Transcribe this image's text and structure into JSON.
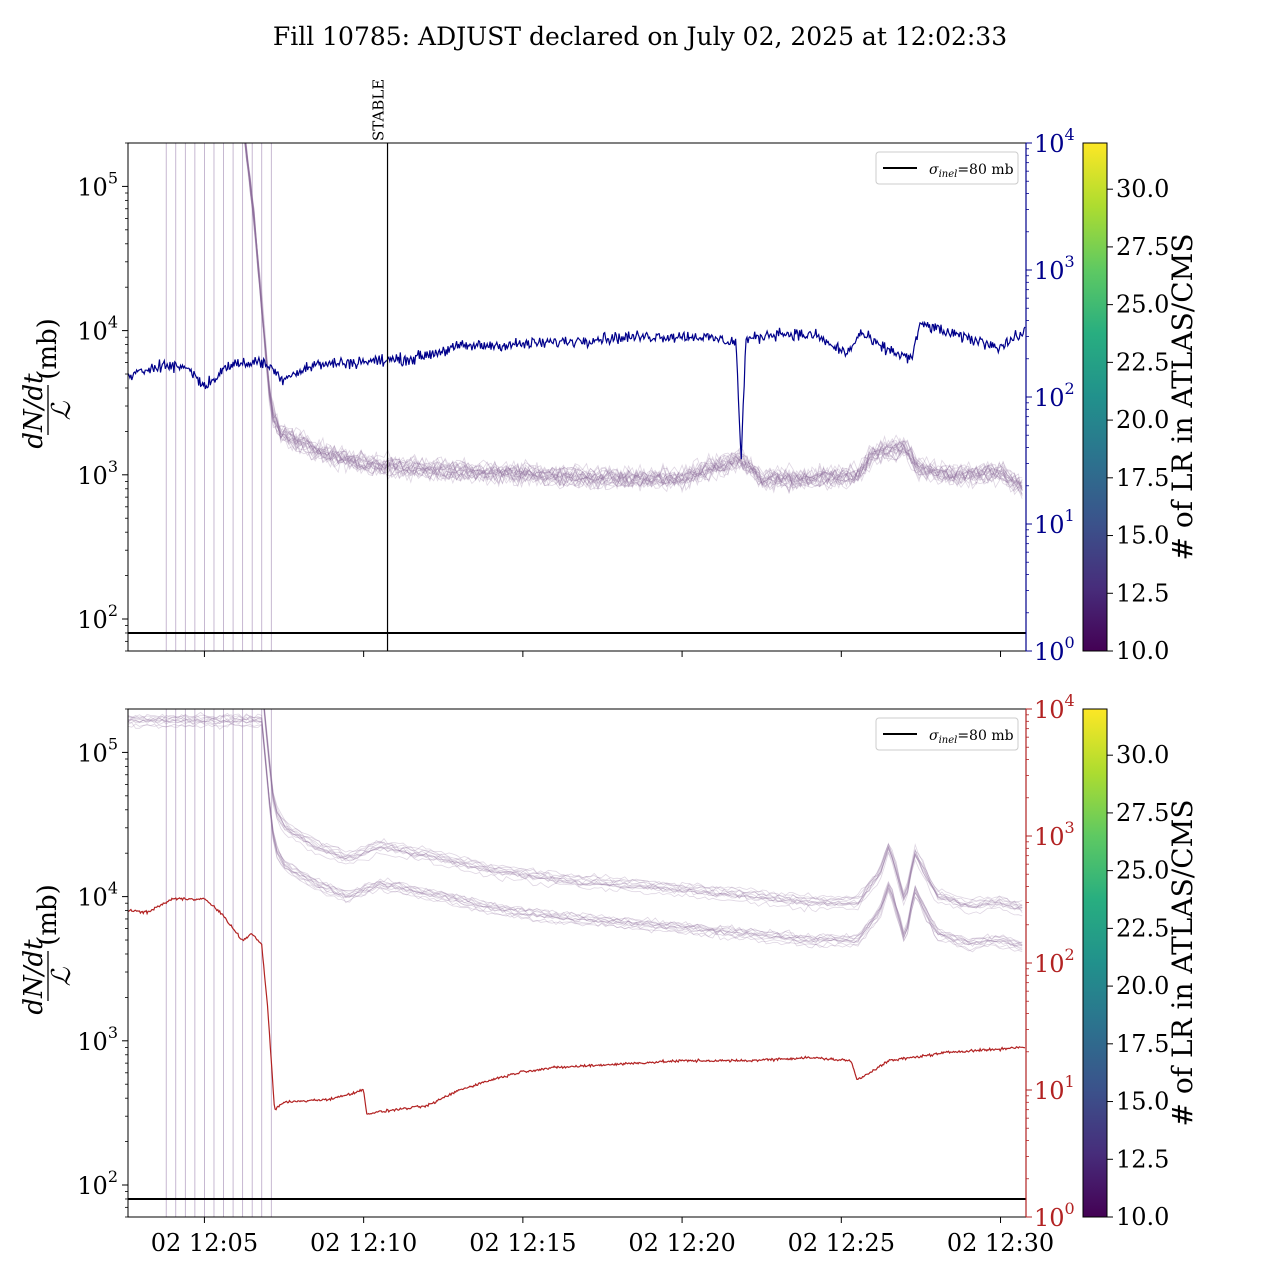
{
  "figure": {
    "title": "Fill 10785: ADJUST declared on July 02, 2025 at 12:02:33"
  },
  "colors": {
    "blue_line": "#00008b",
    "red_line": "#b22222",
    "purple_bundle": "#8b6a9a",
    "reference_line": "#000000"
  },
  "chart_data": [
    {
      "type": "line",
      "panel": "top",
      "title": "",
      "x_ticks": [
        "02 12:05",
        "02 12:10",
        "02 12:15",
        "02 12:20",
        "02 12:25",
        "02 12:30"
      ],
      "x_tick_values_min": [
        5,
        10,
        15,
        20,
        25,
        30
      ],
      "x_range_min": [
        2.6,
        30.8
      ],
      "ylabel_num": "dN/dt",
      "ylabel_den": "ℒ",
      "ylabel_unit": "(mb)",
      "y_scale": "log",
      "y_range": [
        60,
        200000
      ],
      "y_ticks": [
        {
          "base": "10",
          "exp": "2",
          "value": 100
        },
        {
          "base": "10",
          "exp": "3",
          "value": 1000
        },
        {
          "base": "10",
          "exp": "4",
          "value": 10000
        },
        {
          "base": "10",
          "exp": "5",
          "value": 100000
        }
      ],
      "y2_scale": "log",
      "y2_range": [
        1,
        10000
      ],
      "y2_color": "#00008b",
      "y2_ticks": [
        {
          "base": "10",
          "exp": "0",
          "value": 1
        },
        {
          "base": "10",
          "exp": "1",
          "value": 10
        },
        {
          "base": "10",
          "exp": "2",
          "value": 100
        },
        {
          "base": "10",
          "exp": "3",
          "value": 1000
        },
        {
          "base": "10",
          "exp": "4",
          "value": 10000
        }
      ],
      "legend": {
        "label_sym": "σ",
        "label_sub": "inel",
        "label_rest": "=80 mb",
        "position": "top-right"
      },
      "reference_line": 80,
      "vertical_lines_min": [
        3.8,
        4.1,
        4.4,
        4.7,
        5.0,
        5.3,
        5.6,
        5.9,
        6.2,
        6.5,
        6.8,
        7.1
      ],
      "annotation": {
        "text": "STABLE",
        "x_min": 10.75
      },
      "series": [
        {
          "name": "",
          "axis": "right",
          "color": "#00008b",
          "anchors_x": [
            2.6,
            3.5,
            4.5,
            5.0,
            5.8,
            6.8,
            7.1,
            7.4,
            8.5,
            10.0,
            11.5,
            13.0,
            15.0,
            16.5,
            17.5,
            19.0,
            20.5,
            21.7,
            21.85,
            22.0,
            23.0,
            24.3,
            24.6,
            25.2,
            25.6,
            26.2,
            27.2,
            27.5,
            28.5,
            30.0,
            30.8
          ],
          "anchors_y": [
            140,
            180,
            170,
            120,
            180,
            190,
            170,
            140,
            180,
            190,
            200,
            250,
            260,
            275,
            290,
            300,
            300,
            270,
            30,
            280,
            320,
            300,
            260,
            220,
            320,
            250,
            200,
            380,
            310,
            250,
            330
          ]
        },
        {
          "name": "",
          "axis": "left",
          "color": "#8b6a9a",
          "anchors_x": [
            2.6,
            6.2,
            6.6,
            6.9,
            7.1,
            7.4,
            8.5,
            10.0,
            12.0,
            14.0,
            16.0,
            18.0,
            20.0,
            21.85,
            22.5,
            24.0,
            25.5,
            26.0,
            27.0,
            27.4,
            28.5,
            30.0,
            30.8
          ],
          "anchors_y": [
            300000,
            300000,
            50000,
            8000,
            2800,
            2000,
            1500,
            1200,
            1100,
            1050,
            1000,
            950,
            950,
            1300,
            950,
            950,
            1000,
            1400,
            1600,
            1100,
            1000,
            1050,
            800
          ]
        }
      ]
    },
    {
      "type": "line",
      "panel": "bottom",
      "title": "",
      "x_ticks": [
        "02 12:05",
        "02 12:10",
        "02 12:15",
        "02 12:20",
        "02 12:25",
        "02 12:30"
      ],
      "x_tick_values_min": [
        5,
        10,
        15,
        20,
        25,
        30
      ],
      "x_range_min": [
        2.6,
        30.8
      ],
      "ylabel_num": "dN/dt",
      "ylabel_den": "ℒ",
      "ylabel_unit": "(mb)",
      "y_scale": "log",
      "y_range": [
        60,
        200000
      ],
      "y_ticks": [
        {
          "base": "10",
          "exp": "2",
          "value": 100
        },
        {
          "base": "10",
          "exp": "3",
          "value": 1000
        },
        {
          "base": "10",
          "exp": "4",
          "value": 10000
        },
        {
          "base": "10",
          "exp": "5",
          "value": 100000
        }
      ],
      "y2_scale": "log",
      "y2_range": [
        1,
        10000
      ],
      "y2_color": "#b22222",
      "y2_ticks": [
        {
          "base": "10",
          "exp": "0",
          "value": 1
        },
        {
          "base": "10",
          "exp": "1",
          "value": 10
        },
        {
          "base": "10",
          "exp": "2",
          "value": 100
        },
        {
          "base": "10",
          "exp": "3",
          "value": 1000
        },
        {
          "base": "10",
          "exp": "4",
          "value": 10000
        }
      ],
      "legend": {
        "label_sym": "σ",
        "label_sub": "inel",
        "label_rest": "=80 mb",
        "position": "top-right"
      },
      "reference_line": 80,
      "vertical_lines_min": [
        3.8,
        4.1,
        4.4,
        4.7,
        5.0,
        5.3,
        5.6,
        5.9,
        6.2,
        6.5,
        6.8,
        7.1
      ],
      "series": [
        {
          "name": "",
          "axis": "right",
          "color": "#b22222",
          "anchors_x": [
            2.6,
            3.2,
            4.0,
            5.0,
            5.5,
            6.2,
            6.5,
            6.8,
            7.0,
            7.2,
            7.5,
            9.0,
            10.0,
            10.1,
            11.0,
            12.0,
            13.0,
            14.0,
            15.0,
            16.0,
            18.0,
            20.0,
            22.0,
            24.0,
            25.3,
            25.5,
            26.5,
            28.5,
            30.0,
            30.8
          ],
          "anchors_y": [
            260,
            250,
            320,
            320,
            250,
            150,
            170,
            140,
            40,
            7,
            8,
            8.5,
            10,
            6.5,
            7,
            7.5,
            10,
            12,
            14,
            15,
            16,
            17,
            17,
            18,
            17,
            12,
            17,
            20,
            21,
            22
          ]
        },
        {
          "name": "",
          "axis": "left",
          "color": "#8b6a9a",
          "anchors_x": [
            2.6,
            6.8,
            7.0,
            7.2,
            7.5,
            8.5,
            9.5,
            10.5,
            11.5,
            12.5,
            14.0,
            16.0,
            18.0,
            20.0,
            22.0,
            24.0,
            25.5,
            26.2,
            26.5,
            27.0,
            27.3,
            28.0,
            29.0,
            30.0,
            30.8
          ],
          "anchors_y": [
            300000,
            300000,
            100000,
            40000,
            30000,
            22000,
            18000,
            22000,
            20000,
            18000,
            15000,
            13000,
            12000,
            11000,
            10000,
            9000,
            9000,
            14000,
            22000,
            9000,
            20000,
            10000,
            8500,
            9000,
            8000
          ]
        }
      ]
    }
  ],
  "colorbars": [
    {
      "label": "# of LR in ATLAS/CMS",
      "range": [
        10,
        32
      ],
      "ticks": [
        "10.0",
        "12.5",
        "15.0",
        "17.5",
        "20.0",
        "22.5",
        "25.0",
        "27.5",
        "30.0"
      ],
      "tick_values": [
        10,
        12.5,
        15,
        17.5,
        20,
        22.5,
        25,
        27.5,
        30
      ],
      "colormap": "viridis"
    },
    {
      "label": "# of LR in ATLAS/CMS",
      "range": [
        10,
        32
      ],
      "ticks": [
        "10.0",
        "12.5",
        "15.0",
        "17.5",
        "20.0",
        "22.5",
        "25.0",
        "27.5",
        "30.0"
      ],
      "tick_values": [
        10,
        12.5,
        15,
        17.5,
        20,
        22.5,
        25,
        27.5,
        30
      ],
      "colormap": "viridis"
    }
  ]
}
